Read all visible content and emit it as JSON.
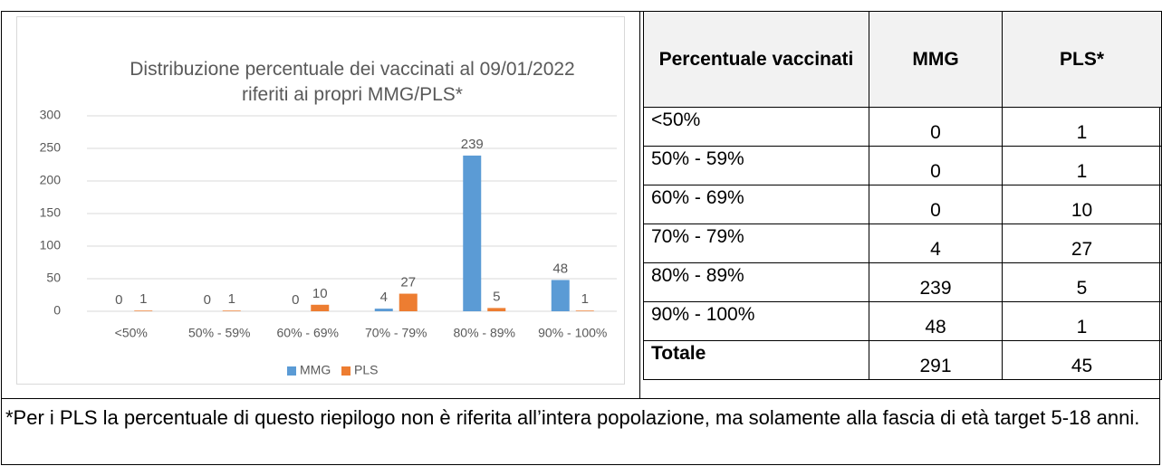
{
  "chart_data": {
    "type": "bar",
    "title": "Distribuzione percentuale dei vaccinati al 09/01/2022 riferiti ai propri MMG/PLS*",
    "categories": [
      "<50%",
      "50% - 59%",
      "60% - 69%",
      "70% - 79%",
      "80% - 89%",
      "90% - 100%"
    ],
    "series": [
      {
        "name": "MMG",
        "color": "#5b9bd5",
        "values": [
          0,
          0,
          0,
          4,
          239,
          48
        ]
      },
      {
        "name": "PLS",
        "color": "#ed7d31",
        "values": [
          1,
          1,
          10,
          27,
          5,
          1
        ]
      }
    ],
    "ylim": [
      0,
      300
    ],
    "yticks": [
      0,
      50,
      100,
      150,
      200,
      250,
      300
    ],
    "grid": true,
    "legend": "bottom"
  },
  "table": {
    "header": [
      "Percentuale vaccinati",
      "MMG",
      "PLS*"
    ],
    "rows": [
      [
        "<50%",
        "0",
        "1"
      ],
      [
        "50% - 59%",
        "0",
        "1"
      ],
      [
        "60% - 69%",
        "0",
        "10"
      ],
      [
        "70% - 79%",
        "4",
        "27"
      ],
      [
        "80% - 89%",
        "239",
        "5"
      ],
      [
        "90% - 100%",
        "48",
        "1"
      ],
      [
        "Totale",
        "291",
        "45"
      ]
    ]
  },
  "footnote": "*Per i PLS la percentuale di questo riepilogo non è riferita all’intera popolazione, ma solamente alla fascia di età target 5-18 anni."
}
